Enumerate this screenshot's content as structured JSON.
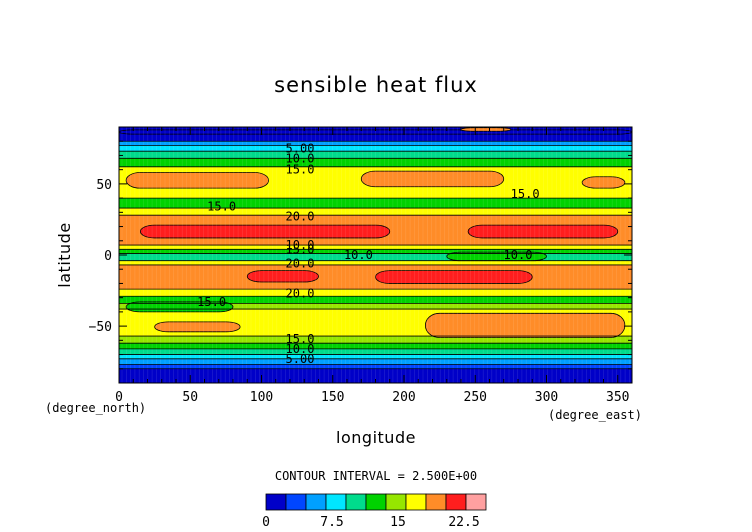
{
  "chart_data": {
    "type": "heatmap",
    "title": "sensible heat flux",
    "xlabel": "longitude",
    "ylabel": "latitude",
    "x_unit": "(degree_east)",
    "y_unit": "(degree_north)",
    "xlim": [
      0,
      360
    ],
    "ylim": [
      -90,
      90
    ],
    "x_ticks": [
      0,
      50,
      100,
      150,
      200,
      250,
      300,
      350
    ],
    "y_ticks": [
      -50,
      0,
      50
    ],
    "x_tick_labels": [
      "0",
      "50",
      "100",
      "150",
      "200",
      "250",
      "300",
      "350"
    ],
    "y_tick_labels": [
      "−50",
      "0",
      "50"
    ],
    "contour_interval_text": "CONTOUR INTERVAL = 2.500E+00",
    "colorbar": {
      "levels": [
        0,
        2.5,
        5,
        7.5,
        10,
        12.5,
        15,
        17.5,
        20,
        22.5,
        25
      ],
      "tick_values": [
        0,
        7.5,
        15,
        22.5
      ],
      "tick_labels": [
        "0",
        "7.5",
        "15",
        "22.5"
      ],
      "colors": [
        "#0000c8",
        "#0046ff",
        "#00a0ff",
        "#00e6ff",
        "#00dc8c",
        "#00d200",
        "#96e600",
        "#ffff00",
        "#ff8c28",
        "#ff1e1e",
        "#ffa0a0"
      ]
    },
    "bands": [
      {
        "lat_min": -90,
        "lat_max": -80,
        "value": 1.5
      },
      {
        "lat_min": -80,
        "lat_max": -77,
        "value": 4
      },
      {
        "lat_min": -77,
        "lat_max": -73,
        "value": 6.5
      },
      {
        "lat_min": -73,
        "lat_max": -70,
        "value": 9
      },
      {
        "lat_min": -70,
        "lat_max": -66,
        "value": 11.5
      },
      {
        "lat_min": -66,
        "lat_max": -62,
        "value": 14
      },
      {
        "lat_min": -62,
        "lat_max": -57,
        "value": 16
      },
      {
        "lat_min": -57,
        "lat_max": -38,
        "value": 18.5
      },
      {
        "lat_min": -38,
        "lat_max": -34,
        "value": 16
      },
      {
        "lat_min": -34,
        "lat_max": -29,
        "value": 14
      },
      {
        "lat_min": -29,
        "lat_max": -24,
        "value": 18.5
      },
      {
        "lat_min": -24,
        "lat_max": -7,
        "value": 21
      },
      {
        "lat_min": -7,
        "lat_max": -4,
        "value": 18.5
      },
      {
        "lat_min": -4,
        "lat_max": 1,
        "value": 11.5
      },
      {
        "lat_min": 1,
        "lat_max": 4,
        "value": 14
      },
      {
        "lat_min": 4,
        "lat_max": 7,
        "value": 18.5
      },
      {
        "lat_min": 7,
        "lat_max": 28,
        "value": 21
      },
      {
        "lat_min": 28,
        "lat_max": 33,
        "value": 18.5
      },
      {
        "lat_min": 33,
        "lat_max": 40,
        "value": 14
      },
      {
        "lat_min": 40,
        "lat_max": 62,
        "value": 18.5
      },
      {
        "lat_min": 62,
        "lat_max": 68,
        "value": 14
      },
      {
        "lat_min": 68,
        "lat_max": 73,
        "value": 11.5
      },
      {
        "lat_min": 73,
        "lat_max": 77,
        "value": 9
      },
      {
        "lat_min": 77,
        "lat_max": 80,
        "value": 6.5
      },
      {
        "lat_min": 80,
        "lat_max": 90,
        "value": 2
      }
    ],
    "patches": [
      {
        "lon": [
          5,
          105
        ],
        "lat": [
          47,
          58
        ],
        "value": 21
      },
      {
        "lon": [
          170,
          270
        ],
        "lat": [
          48,
          59
        ],
        "value": 21
      },
      {
        "lon": [
          325,
          355
        ],
        "lat": [
          47,
          55
        ],
        "value": 21
      },
      {
        "lon": [
          15,
          190
        ],
        "lat": [
          12,
          21
        ],
        "value": 23.5
      },
      {
        "lon": [
          245,
          350
        ],
        "lat": [
          12,
          21
        ],
        "value": 23.5
      },
      {
        "lon": [
          90,
          140
        ],
        "lat": [
          -19,
          -11
        ],
        "value": 23.5
      },
      {
        "lon": [
          180,
          290
        ],
        "lat": [
          -20,
          -11
        ],
        "value": 23.5
      },
      {
        "lon": [
          215,
          355
        ],
        "lat": [
          -58,
          -41
        ],
        "value": 21
      },
      {
        "lon": [
          25,
          85
        ],
        "lat": [
          -54,
          -47
        ],
        "value": 21
      },
      {
        "lon": [
          5,
          80
        ],
        "lat": [
          -40,
          -33
        ],
        "value": 14
      },
      {
        "lon": [
          230,
          300
        ],
        "lat": [
          -4,
          2
        ],
        "value": 14
      },
      {
        "lon": [
          0,
          360
        ],
        "lat": [
          85,
          88
        ],
        "value": 1.5
      },
      {
        "lon": [
          240,
          275
        ],
        "lat": [
          87,
          89.5
        ],
        "value": 21
      }
    ],
    "contour_labels": [
      {
        "text": "5.00",
        "lon": 127,
        "lat": 75
      },
      {
        "text": "10.0",
        "lon": 127,
        "lat": 68
      },
      {
        "text": "15.0",
        "lon": 127,
        "lat": 60
      },
      {
        "text": "15.0",
        "lon": 285,
        "lat": 43
      },
      {
        "text": "15.0",
        "lon": 72,
        "lat": 34
      },
      {
        "text": "20.0",
        "lon": 127,
        "lat": 27
      },
      {
        "text": "10.0",
        "lon": 127,
        "lat": 7
      },
      {
        "text": "15.0",
        "lon": 127,
        "lat": 4
      },
      {
        "text": "10.0",
        "lon": 168,
        "lat": 0
      },
      {
        "text": "10.0",
        "lon": 280,
        "lat": 0
      },
      {
        "text": "20.0",
        "lon": 127,
        "lat": -6
      },
      {
        "text": "20.0",
        "lon": 127,
        "lat": -27
      },
      {
        "text": "15.0",
        "lon": 65,
        "lat": -33
      },
      {
        "text": "15.0",
        "lon": 127,
        "lat": -59
      },
      {
        "text": "10.0",
        "lon": 127,
        "lat": -66
      },
      {
        "text": "5.00",
        "lon": 127,
        "lat": -73
      }
    ]
  }
}
